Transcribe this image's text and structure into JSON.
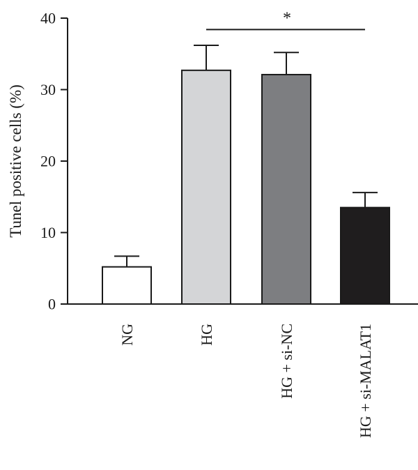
{
  "chart_data": {
    "type": "bar",
    "title": "",
    "xlabel": "",
    "ylabel": "Tunel positive cells (%)",
    "ylim": [
      0,
      40
    ],
    "yticks": [
      0,
      10,
      20,
      30,
      40
    ],
    "ytick_labels": [
      "0",
      "10",
      "20",
      "30",
      "40"
    ],
    "categories": [
      "NG",
      "HG",
      "HG + si-NC",
      "HG + si-MALAT1"
    ],
    "values": [
      5.2,
      32.7,
      32.1,
      13.5
    ],
    "errors": [
      1.5,
      3.5,
      3.1,
      2.1
    ],
    "colors": [
      "#ffffff",
      "#d4d5d7",
      "#7d7e81",
      "#1f1d1e"
    ],
    "grid": false,
    "legend": "none",
    "significance": {
      "label": "*",
      "from_category": "HG",
      "to_category": "HG + si-MALAT1",
      "y": 38.4
    }
  }
}
